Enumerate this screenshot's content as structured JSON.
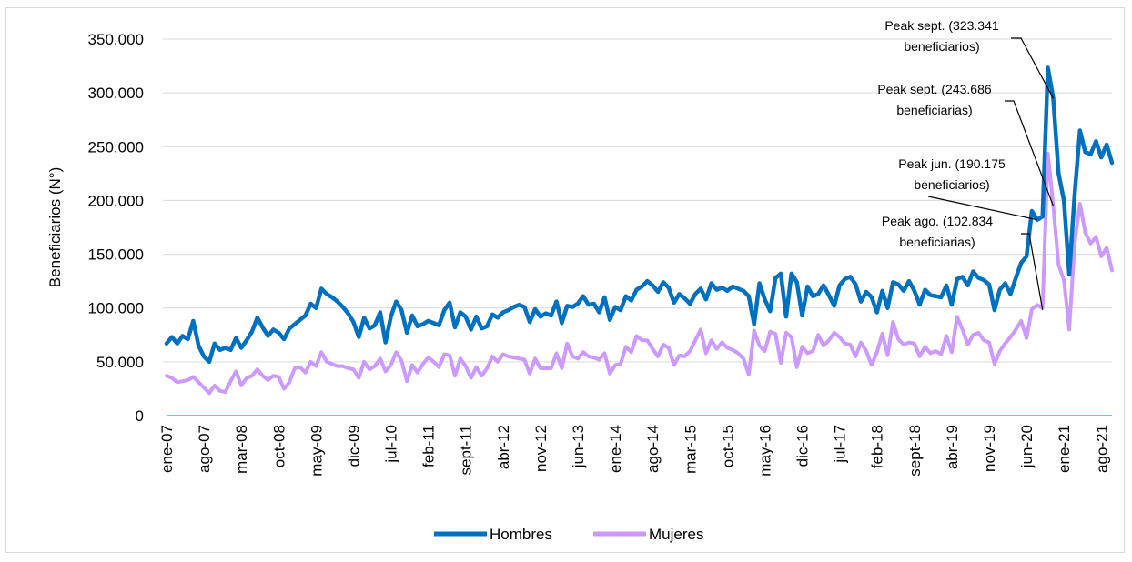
{
  "chart_data": {
    "type": "line",
    "title": "",
    "xlabel": "",
    "ylabel": "Beneficiarios (N°)",
    "ylim": [
      0,
      350000
    ],
    "yticks": [
      0,
      50000,
      100000,
      150000,
      200000,
      250000,
      300000,
      350000
    ],
    "ytick_labels": [
      "0",
      "50.000",
      "100.000",
      "150.000",
      "200.000",
      "250.000",
      "300.000",
      "350.000"
    ],
    "grid": "horizontal",
    "legend_position": "bottom",
    "x_tick_labels": [
      "ene-07",
      "ago-07",
      "mar-08",
      "oct-08",
      "may-09",
      "dic-09",
      "jul-10",
      "feb-11",
      "sept-11",
      "abr-12",
      "nov-12",
      "jun-13",
      "ene-14",
      "ago-14",
      "mar-15",
      "oct-15",
      "may-16",
      "dic-16",
      "jul-17",
      "feb-18",
      "sept-18",
      "abr-19",
      "nov-19",
      "jun-20",
      "ene-21",
      "ago-21"
    ],
    "series": [
      {
        "name": "Hombres",
        "color": "#0070C0",
        "values": [
          67000,
          73000,
          67000,
          74000,
          71000,
          88000,
          65000,
          55000,
          50000,
          67000,
          61000,
          63000,
          61000,
          72000,
          63000,
          70000,
          78000,
          91000,
          82000,
          74000,
          80000,
          77000,
          71000,
          81000,
          85000,
          89000,
          93000,
          104000,
          100000,
          118000,
          113000,
          110000,
          106000,
          101000,
          95000,
          87000,
          73000,
          91000,
          81000,
          84000,
          96000,
          68000,
          92000,
          106000,
          98000,
          77000,
          93000,
          83000,
          85000,
          88000,
          86000,
          84000,
          98000,
          105000,
          82000,
          96000,
          92000,
          80000,
          92000,
          81000,
          83000,
          94000,
          91000,
          96000,
          98000,
          101000,
          103000,
          101000,
          87000,
          99000,
          92000,
          95000,
          93000,
          106000,
          86000,
          102000,
          101000,
          104000,
          111000,
          103000,
          104000,
          96000,
          110000,
          89000,
          101000,
          98000,
          111000,
          107000,
          117000,
          120000,
          125000,
          121000,
          115000,
          124000,
          119000,
          105000,
          113000,
          109000,
          104000,
          113000,
          118000,
          108000,
          123000,
          117000,
          119000,
          116000,
          120000,
          118000,
          116000,
          111000,
          85000,
          123000,
          108000,
          97000,
          128000,
          132000,
          92000,
          132000,
          124000,
          93000,
          120000,
          111000,
          113000,
          121000,
          112000,
          102000,
          121000,
          127000,
          129000,
          122000,
          106000,
          115000,
          110000,
          96000,
          116000,
          100000,
          124000,
          122000,
          116000,
          125000,
          116000,
          103000,
          117000,
          112000,
          111000,
          110000,
          121000,
          103000,
          127000,
          129000,
          121000,
          134000,
          128000,
          126000,
          122000,
          98000,
          117000,
          123000,
          113000,
          128000,
          142000,
          148000,
          190175,
          182000,
          185000,
          323341,
          295000,
          225000,
          200000,
          131000,
          205000,
          265000,
          245000,
          243000,
          255000,
          240000,
          252000,
          235000
        ]
      },
      {
        "name": "Mujeres",
        "color": "#CC99FF",
        "values": [
          37000,
          35000,
          31000,
          32000,
          33000,
          36000,
          31000,
          26000,
          21000,
          28000,
          23000,
          22000,
          32000,
          41000,
          28000,
          35000,
          37000,
          43000,
          37000,
          33000,
          37000,
          36000,
          25000,
          31000,
          44000,
          45000,
          40000,
          50000,
          46000,
          59000,
          50000,
          48000,
          46000,
          46000,
          44000,
          43000,
          35000,
          50000,
          43000,
          46000,
          53000,
          41000,
          47000,
          59000,
          51000,
          32000,
          47000,
          40000,
          48000,
          54000,
          50000,
          45000,
          57000,
          56000,
          37000,
          53000,
          46000,
          35000,
          45000,
          37000,
          44000,
          55000,
          50000,
          57000,
          55000,
          54000,
          53000,
          52000,
          39000,
          53000,
          44000,
          44000,
          44000,
          58000,
          44000,
          67000,
          55000,
          53000,
          59000,
          55000,
          54000,
          52000,
          58000,
          39000,
          47000,
          48000,
          64000,
          59000,
          74000,
          70000,
          70000,
          62000,
          55000,
          66000,
          63000,
          47000,
          56000,
          55000,
          60000,
          70000,
          80000,
          58000,
          70000,
          62000,
          68000,
          63000,
          61000,
          58000,
          53000,
          38000,
          79000,
          65000,
          60000,
          78000,
          76000,
          49000,
          77000,
          73000,
          45000,
          64000,
          58000,
          60000,
          75000,
          65000,
          70000,
          77000,
          73000,
          67000,
          66000,
          55000,
          68000,
          60000,
          47000,
          59000,
          76000,
          56000,
          87000,
          71000,
          66000,
          68000,
          67000,
          55000,
          64000,
          58000,
          60000,
          57000,
          74000,
          59000,
          92000,
          80000,
          66000,
          75000,
          77000,
          70000,
          68000,
          48000,
          60000,
          67000,
          73000,
          80000,
          88000,
          72000,
          99000,
          102834,
          100000,
          243686,
          195000,
          140000,
          126000,
          80000,
          160000,
          197000,
          170000,
          160000,
          166000,
          148000,
          156000,
          135000
        ]
      }
    ],
    "annotations": [
      {
        "line1": "Peak sept. (323.341",
        "line2": "beneficiarios)"
      },
      {
        "line1": "Peak sept. (243.686",
        "line2": "beneficiarias)"
      },
      {
        "line1": "Peak jun. (190.175",
        "line2": "beneficiarios)"
      },
      {
        "line1": "Peak ago. (102.834",
        "line2": "beneficiarias)"
      }
    ],
    "x_axis_color": "#4BACC6",
    "grid_color": "#d9d9d9"
  }
}
